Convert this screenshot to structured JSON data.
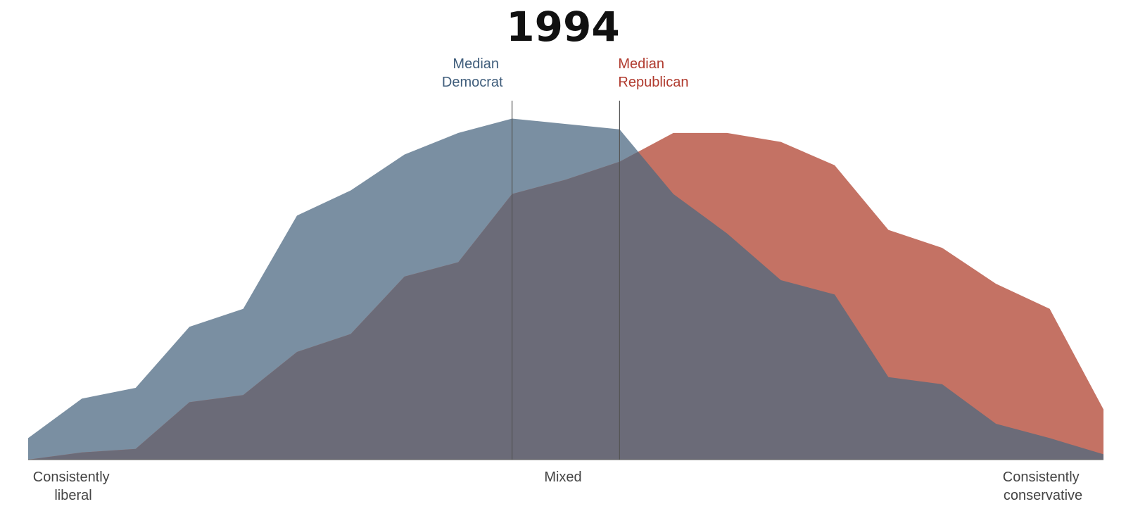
{
  "title": "1994",
  "colors": {
    "democrat": "#7a8fa2",
    "republican": "#c47264",
    "overlap": "#6b6b78",
    "democrat_label": "#3f5d7b",
    "republican_label": "#b03a2e",
    "median_line": "#555555",
    "axis_line": "#666666"
  },
  "medians": {
    "democrat": {
      "label": [
        "Median",
        "Democrat"
      ],
      "x": -1
    },
    "republican": {
      "label": [
        "Median",
        "Republican"
      ],
      "x": 1
    }
  },
  "axis": {
    "left_label": [
      "Consistently",
      "liberal"
    ],
    "center_label": [
      "Mixed"
    ],
    "right_label": [
      "Consistently",
      "conservative"
    ]
  },
  "chart_data": {
    "type": "area",
    "title": "1994",
    "x": [
      -10,
      -9,
      -8,
      -7,
      -6,
      -5,
      -4,
      -3,
      -2,
      -1,
      0,
      1,
      2,
      3,
      4,
      5,
      6,
      7,
      8,
      9,
      10
    ],
    "xlim": [
      -10,
      10
    ],
    "ylim": [
      0,
      100
    ],
    "grid": false,
    "series": [
      {
        "name": "Democrats",
        "values": [
          6,
          17,
          20,
          37,
          42,
          68,
          75,
          85,
          91,
          95,
          93.5,
          92,
          74,
          63,
          50,
          46,
          23,
          21,
          10,
          6,
          1.5
        ]
      },
      {
        "name": "Republicans",
        "values": [
          0,
          2,
          3,
          16,
          18,
          30,
          35,
          51,
          55,
          74,
          78,
          83,
          91,
          91,
          88.5,
          82,
          64,
          59,
          49,
          42,
          14
        ]
      }
    ]
  }
}
